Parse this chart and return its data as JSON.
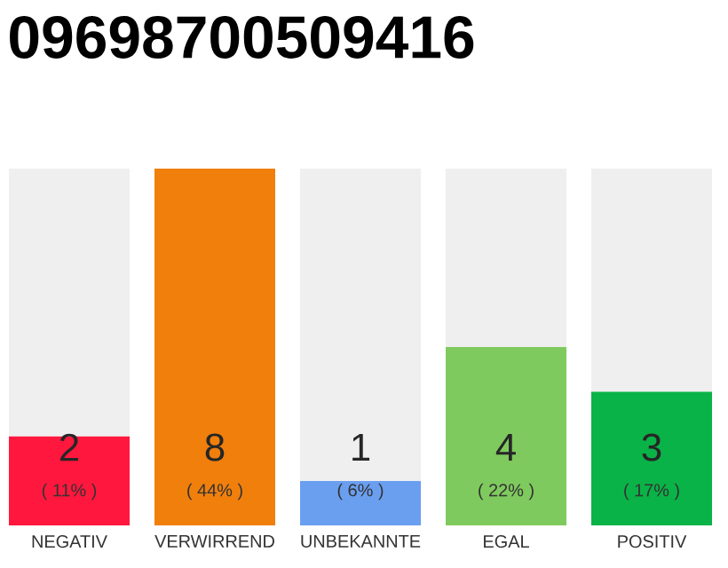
{
  "chart_data": {
    "type": "bar",
    "title": "09698700509416",
    "stacked": true,
    "categories": [
      "NEGATIV",
      "VERWIRREND",
      "UNBEKANNTE",
      "EGAL",
      "POSITIV"
    ],
    "ylim": [
      0,
      8
    ],
    "series": [
      {
        "colors": [
          "#ff173d",
          "#f07f0c",
          "#6a9ff0",
          "#7fca5e",
          "#0ab347"
        ],
        "values": [
          2,
          8,
          1,
          4,
          3
        ],
        "value_labels": [
          "2",
          "8",
          "1",
          "4",
          "3"
        ]
      },
      {
        "color": "#efefef",
        "values": [
          6,
          0,
          7,
          4,
          5
        ]
      }
    ],
    "annotations": [
      "( 11% )",
      "( 44% )",
      "( 6% )",
      "( 22% )",
      "( 17% )"
    ]
  }
}
